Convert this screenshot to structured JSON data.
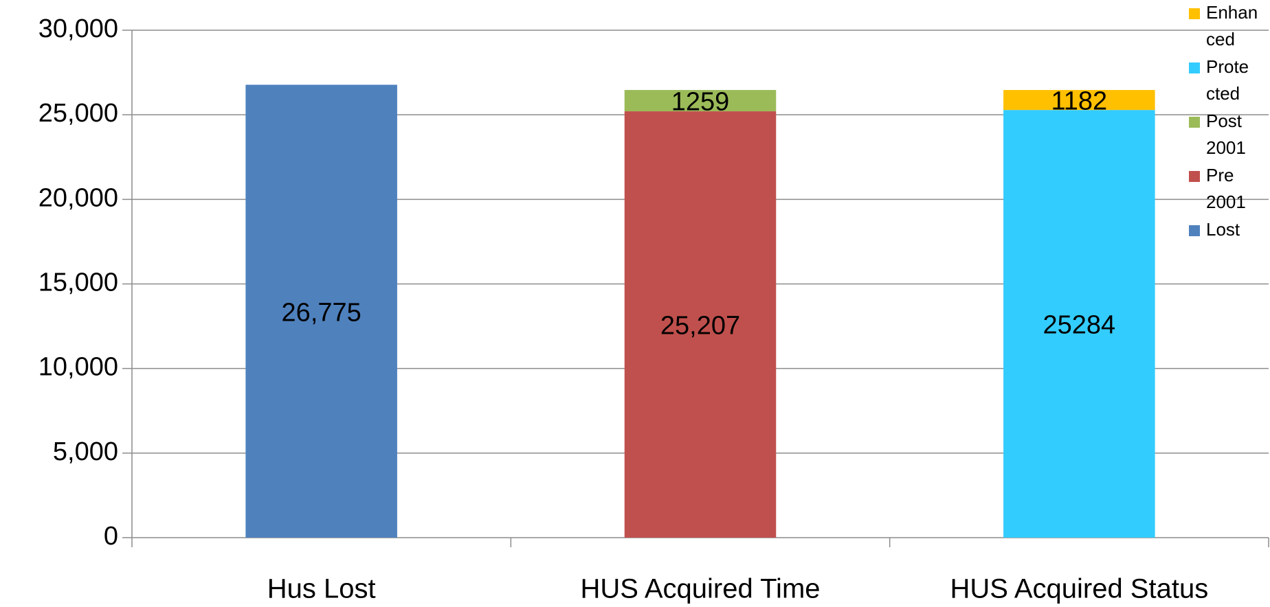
{
  "chart_data": {
    "type": "stacked_bar",
    "categories": [
      "Hus Lost",
      "HUS Acquired Time",
      "HUS Acquired Status"
    ],
    "series": [
      {
        "name": "Lost",
        "color": "#4f81bd",
        "values": [
          26775,
          null,
          null
        ],
        "value_labels": [
          "26,775",
          null,
          null
        ]
      },
      {
        "name": "Pre 2001",
        "color": "#c0504d",
        "values": [
          null,
          25207,
          null
        ],
        "value_labels": [
          null,
          "25,207",
          null
        ]
      },
      {
        "name": "Post 2001",
        "color": "#9bbb59",
        "values": [
          null,
          1259,
          null
        ]
      },
      {
        "name": "Protected",
        "color": "#33ccff",
        "values": [
          null,
          null,
          25284
        ]
      },
      {
        "name": "Enhanced",
        "color": "#ffc000",
        "values": [
          null,
          null,
          1182
        ]
      }
    ],
    "ylim": [
      0,
      30000
    ],
    "yticks": [
      0,
      {
        "value": 5000,
        "label": "5,000"
      },
      {
        "value": 10000,
        "label": "10,000"
      },
      {
        "value": 15000,
        "label": "15,000"
      },
      {
        "value": 20000,
        "label": "20,000"
      },
      {
        "value": 25000,
        "label": "25,000"
      },
      {
        "value": 30000,
        "label": "30,000"
      }
    ],
    "grid": true,
    "legend": "top-right"
  }
}
